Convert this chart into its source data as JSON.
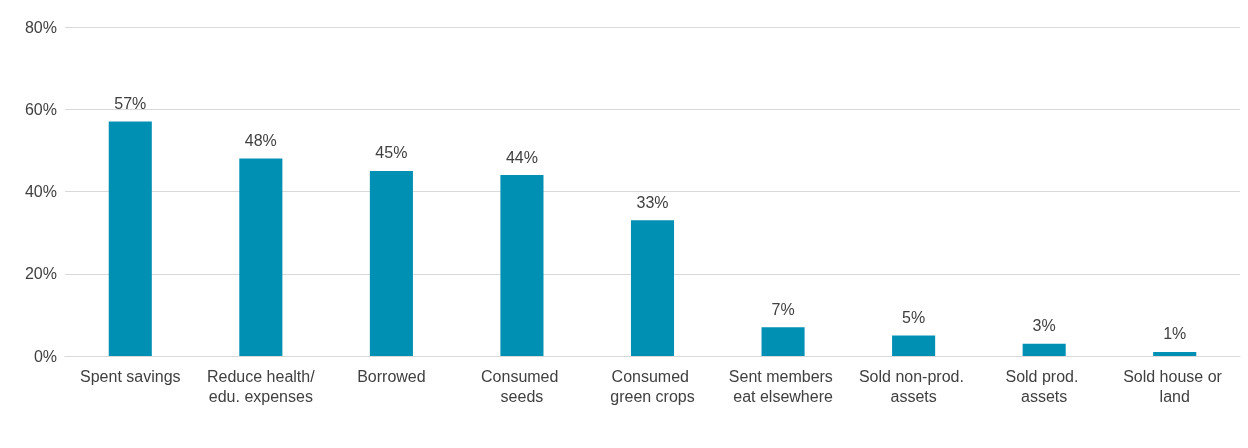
{
  "chart_data": {
    "type": "bar",
    "categories": [
      "Spent savings",
      "Reduce health/edu. expenses",
      "Borrowed",
      "Consumed seeds",
      "Consumed green crops",
      "Sent members eat elsewhere",
      "Sold non-prod. assets",
      "Sold prod. assets",
      "Sold house or land"
    ],
    "values": [
      57,
      48,
      45,
      44,
      33,
      7,
      5,
      3,
      1
    ],
    "value_labels": [
      "57%",
      "48%",
      "45%",
      "44%",
      "33%",
      "7%",
      "5%",
      "3%",
      "1%"
    ],
    "color": "#0090b4",
    "ylim": [
      0,
      80
    ],
    "yticks": [
      {
        "value": 0,
        "label": "0%"
      },
      {
        "value": 20,
        "label": "20%"
      },
      {
        "value": 40,
        "label": "40%"
      },
      {
        "value": 60,
        "label": "60%"
      },
      {
        "value": 80,
        "label": "80%"
      }
    ],
    "grid": "y"
  }
}
